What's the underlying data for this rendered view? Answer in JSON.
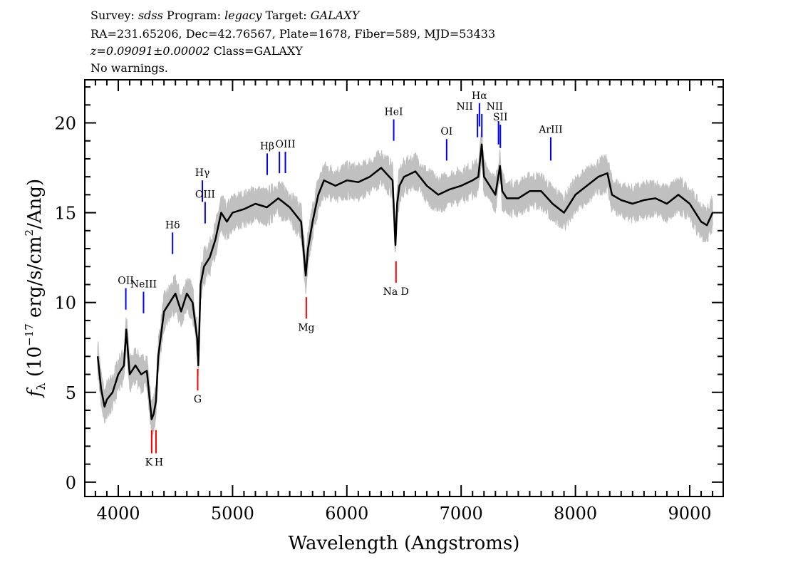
{
  "header": {
    "survey_label": "Survey:",
    "survey": "sdss",
    "program_label": "Program:",
    "program": "legacy",
    "target_label": "Target:",
    "target": "GALAXY",
    "line2": "RA=231.65206, Dec=42.76567, Plate=1678, Fiber=589, MJD=53433",
    "redshift": "z=0.09091±0.00002",
    "class": "Class=GALAXY",
    "warnings": "No warnings."
  },
  "chart_data": {
    "type": "line",
    "xlabel": "Wavelength (Angstroms)",
    "ylabel_main": "f",
    "ylabel_sub": "λ",
    "ylabel_rest": " (10",
    "ylabel_exp": "−17",
    "ylabel_tail": " erg/s/cm",
    "ylabel_exp2": "2",
    "ylabel_end": "/Ang)",
    "xlim": [
      3707,
      9293
    ],
    "ylim": [
      -0.8,
      22.4
    ],
    "xticks": [
      4000,
      5000,
      6000,
      7000,
      8000,
      9000
    ],
    "xtick_labels": [
      "4000",
      "5000",
      "6000",
      "7000",
      "8000",
      "9000"
    ],
    "x_minor_step": 100,
    "yticks": [
      0,
      5,
      10,
      15,
      20
    ],
    "ytick_labels": [
      "0",
      "5",
      "10",
      "15",
      "20"
    ],
    "y_minor_step": 1,
    "grid": false,
    "colors": {
      "flux": "#000000",
      "error": "#c0c0c0",
      "emission": "#0000ff",
      "absorption": "#ff0000"
    },
    "flux_error_typical": 0.8,
    "spectrum": {
      "wavelength": [
        3820,
        3850,
        3880,
        3900,
        3950,
        4000,
        4050,
        4070,
        4100,
        4150,
        4200,
        4250,
        4292,
        4310,
        4330,
        4350,
        4400,
        4450,
        4500,
        4550,
        4600,
        4650,
        4690,
        4700,
        4720,
        4750,
        4800,
        4850,
        4900,
        4950,
        5000,
        5100,
        5200,
        5300,
        5400,
        5500,
        5600,
        5640,
        5660,
        5700,
        5750,
        5800,
        5900,
        6000,
        6100,
        6200,
        6300,
        6400,
        6425,
        6440,
        6460,
        6500,
        6600,
        6700,
        6800,
        6900,
        7000,
        7100,
        7150,
        7180,
        7200,
        7250,
        7300,
        7340,
        7360,
        7400,
        7500,
        7600,
        7700,
        7800,
        7900,
        8000,
        8100,
        8200,
        8280,
        8320,
        8400,
        8500,
        8600,
        8700,
        8800,
        8900,
        9000,
        9100,
        9150,
        9200
      ],
      "flux": [
        7.0,
        5.2,
        4.2,
        4.6,
        5.0,
        6.0,
        6.5,
        8.5,
        6.0,
        6.5,
        6.0,
        6.2,
        3.5,
        3.8,
        4.5,
        7.0,
        9.5,
        10.0,
        10.5,
        9.5,
        10.5,
        10.0,
        8.0,
        6.5,
        11.0,
        12.0,
        12.5,
        13.5,
        15.0,
        14.5,
        15.0,
        15.2,
        15.5,
        15.3,
        15.8,
        15.3,
        14.5,
        11.5,
        13.0,
        14.5,
        16.0,
        16.8,
        16.5,
        16.8,
        16.7,
        17.0,
        17.5,
        16.8,
        13.2,
        15.5,
        16.5,
        17.0,
        17.3,
        16.5,
        16.0,
        16.3,
        16.5,
        16.8,
        17.0,
        18.8,
        17.0,
        16.5,
        16.0,
        17.6,
        16.2,
        15.8,
        15.8,
        16.2,
        16.2,
        15.5,
        15.0,
        16.0,
        16.5,
        17.0,
        17.2,
        16.0,
        15.7,
        15.5,
        15.7,
        15.8,
        15.5,
        16.0,
        15.5,
        14.5,
        14.3,
        15.0
      ]
    },
    "lines": [
      {
        "label": "OII",
        "wavelength": 4066,
        "type": "emission",
        "range": [
          9.6,
          10.8
        ]
      },
      {
        "label": "NeIII",
        "wavelength": 4221,
        "type": "emission",
        "range": [
          9.4,
          10.6
        ]
      },
      {
        "label": "Hδ",
        "wavelength": 4475,
        "type": "emission",
        "range": [
          12.7,
          13.9
        ]
      },
      {
        "label": "Hγ",
        "wavelength": 4736,
        "type": "emission",
        "range": [
          15.6,
          16.8
        ]
      },
      {
        "label": "OIII",
        "wavelength": 4760,
        "type": "emission",
        "range": [
          14.4,
          15.6
        ]
      },
      {
        "label": "Hβ",
        "wavelength": 5303,
        "type": "emission",
        "range": [
          17.1,
          18.3
        ]
      },
      {
        "label": "",
        "wavelength": 5410,
        "type": "emission",
        "range": [
          17.2,
          18.4
        ]
      },
      {
        "label": "OIII",
        "wavelength": 5462,
        "type": "emission",
        "range": [
          17.2,
          18.4
        ]
      },
      {
        "label": "HeI",
        "wavelength": 6410,
        "type": "emission",
        "range": [
          19.0,
          20.2
        ]
      },
      {
        "label": "OI",
        "wavelength": 6873,
        "type": "emission",
        "range": [
          17.9,
          19.1
        ]
      },
      {
        "label": "NII",
        "wavelength": 7143,
        "type": "emission",
        "range": [
          19.2,
          20.5
        ]
      },
      {
        "label": "Hα",
        "wavelength": 7160,
        "type": "emission",
        "range": [
          19.8,
          21.1
        ]
      },
      {
        "label": "NII",
        "wavelength": 7181,
        "type": "emission",
        "range": [
          19.2,
          20.5
        ]
      },
      {
        "label": "",
        "wavelength": 7327,
        "type": "emission",
        "range": [
          18.8,
          20.1
        ]
      },
      {
        "label": "SII",
        "wavelength": 7343,
        "type": "emission",
        "range": [
          18.6,
          19.9
        ]
      },
      {
        "label": "ArIII",
        "wavelength": 7784,
        "type": "emission",
        "range": [
          17.9,
          19.2
        ]
      },
      {
        "label": "K",
        "wavelength": 4292,
        "type": "absorption",
        "range": [
          1.6,
          2.9
        ]
      },
      {
        "label": "H",
        "wavelength": 4330,
        "type": "absorption",
        "range": [
          1.6,
          2.9
        ]
      },
      {
        "label": "G",
        "wavelength": 4695,
        "type": "absorption",
        "range": [
          5.1,
          6.3
        ]
      },
      {
        "label": "Mg",
        "wavelength": 5645,
        "type": "absorption",
        "range": [
          9.1,
          10.3
        ]
      },
      {
        "label": "Na D",
        "wavelength": 6430,
        "type": "absorption",
        "range": [
          11.1,
          12.3
        ]
      }
    ]
  }
}
